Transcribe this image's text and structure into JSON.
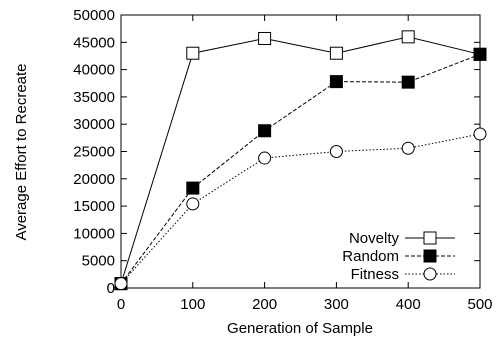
{
  "chart_data": {
    "type": "line",
    "title": "",
    "xlabel": "Generation of Sample",
    "ylabel": "Average Effort to Recreate",
    "x": [
      0,
      100,
      200,
      300,
      400,
      500
    ],
    "xlim": [
      0,
      500
    ],
    "ylim": [
      0,
      50000
    ],
    "xticks": [
      "0",
      "100",
      "200",
      "300",
      "400",
      "500"
    ],
    "yticks": [
      "0",
      "5000",
      "10000",
      "15000",
      "20000",
      "25000",
      "30000",
      "35000",
      "40000",
      "45000",
      "50000"
    ],
    "grid": false,
    "legend_position": "bottom-right",
    "series": [
      {
        "name": "Novelty",
        "values": [
          800,
          43000,
          45700,
          43000,
          46000,
          42800
        ],
        "marker": "open-square",
        "line": "solid"
      },
      {
        "name": "Random",
        "values": [
          800,
          18300,
          28800,
          37800,
          37700,
          42800
        ],
        "marker": "filled-square",
        "line": "dashed"
      },
      {
        "name": "Fitness",
        "values": [
          800,
          15400,
          23800,
          25000,
          25600,
          28200
        ],
        "marker": "open-circle",
        "line": "dotted"
      }
    ]
  }
}
